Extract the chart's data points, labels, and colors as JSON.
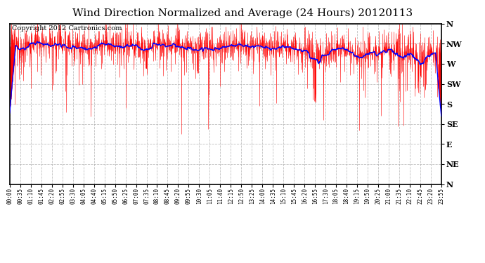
{
  "title": "Wind Direction Normalized and Average (24 Hours) 20120113",
  "copyright_text": "Copyright 2012 Cartronics.com",
  "ytick_labels": [
    "N",
    "NW",
    "W",
    "SW",
    "S",
    "SE",
    "E",
    "NE",
    "N"
  ],
  "ytick_values": [
    360,
    315,
    270,
    225,
    180,
    135,
    90,
    45,
    0
  ],
  "ylim": [
    0,
    360
  ],
  "background_color": "#ffffff",
  "plot_bg_color": "#ffffff",
  "grid_color": "#b0b0b0",
  "line_color_raw": "#ff0000",
  "line_color_avg": "#0000ff",
  "title_fontsize": 11,
  "copyright_fontsize": 7,
  "n_points": 1440,
  "base_wind": 320,
  "avg_wind": 315,
  "noise_std": 20,
  "spike_count": 200,
  "spike_std": 60,
  "avg_window": 40
}
